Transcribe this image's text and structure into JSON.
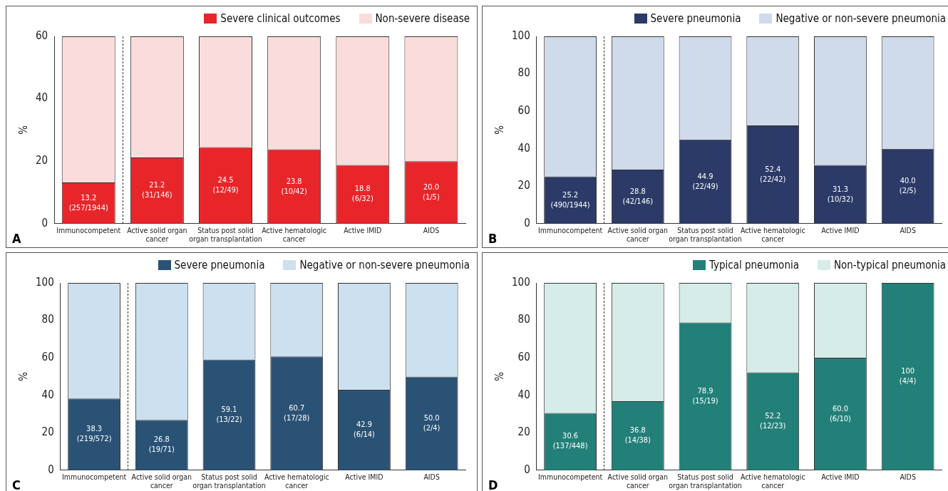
{
  "chart_data": [
    {
      "type": "bar",
      "stacked": true,
      "categories": [
        "Immunocompetent",
        "Active solid organ cancer",
        "Status post solid organ transplantation",
        "Active hematologic cancer",
        "Active IMID",
        "AIDS"
      ],
      "series": [
        {
          "name": "Severe clinical outcomes",
          "color": "#e8262a",
          "values": [
            13.2,
            21.2,
            24.5,
            23.8,
            18.8,
            20.0
          ],
          "value_labels": [
            "13.2 (257/1944)",
            "21.2 (31/146)",
            "24.5 (12/49)",
            "23.8 (10/42)",
            "18.8 (6/32)",
            "20.0 (1/5)"
          ]
        },
        {
          "name": "Non-severe disease",
          "color": "#fbdcdc",
          "values": [
            46.8,
            38.8,
            35.5,
            36.2,
            41.2,
            40.0
          ]
        }
      ],
      "ylabel": "%",
      "ylim": [
        0,
        60
      ],
      "yticks": [
        0,
        20,
        40,
        60
      ],
      "legend": "top right",
      "grid": false,
      "annotations": [
        "A"
      ]
    },
    {
      "type": "bar",
      "stacked": true,
      "categories": [
        "Immunocompetent",
        "Active solid organ cancer",
        "Status post solid organ transplantation",
        "Active hematologic cancer",
        "Active IMID",
        "AIDS"
      ],
      "series": [
        {
          "name": "Severe pneumonia",
          "color": "#2b3a67",
          "values": [
            25.2,
            28.8,
            44.9,
            52.4,
            31.3,
            40.0
          ],
          "value_labels": [
            "25.2 (490/1944)",
            "28.8 (42/146)",
            "44.9 (22/49)",
            "52.4 (22/42)",
            "31.3 (10/32)",
            "40.0 (2/5)"
          ]
        },
        {
          "name": "Negative or non-severe pneumonia",
          "color": "#cfdaeb",
          "values": [
            74.8,
            71.2,
            55.1,
            47.6,
            68.7,
            60.0
          ]
        }
      ],
      "ylabel": "%",
      "ylim": [
        0,
        100
      ],
      "yticks": [
        0,
        20,
        40,
        60,
        80,
        100
      ],
      "legend": "top right",
      "grid": false,
      "annotations": [
        "B"
      ]
    },
    {
      "type": "bar",
      "stacked": true,
      "categories": [
        "Immunocompetent",
        "Active solid organ cancer",
        "Status post solid organ transplantation",
        "Active hematologic cancer",
        "Active IMID",
        "AIDS"
      ],
      "series": [
        {
          "name": "Severe pneumonia",
          "color": "#2a5275",
          "values": [
            38.3,
            26.8,
            59.1,
            60.7,
            42.9,
            50.0
          ],
          "value_labels": [
            "38.3 (219/572)",
            "26.8 (19/71)",
            "59.1 (13/22)",
            "60.7 (17/28)",
            "42.9 (6/14)",
            "50.0 (2/4)"
          ]
        },
        {
          "name": "Negative or non-severe pneumonia",
          "color": "#cde0ef",
          "values": [
            61.7,
            73.2,
            40.9,
            39.3,
            57.1,
            50.0
          ]
        }
      ],
      "ylabel": "%",
      "ylim": [
        0,
        100
      ],
      "yticks": [
        0,
        20,
        40,
        60,
        80,
        100
      ],
      "legend": "top right",
      "grid": false,
      "annotations": [
        "C"
      ]
    },
    {
      "type": "bar",
      "stacked": true,
      "categories": [
        "Immunocompetent",
        "Active solid organ cancer",
        "Status post solid organ transplantation",
        "Active hematologic cancer",
        "Active IMID",
        "AIDS"
      ],
      "series": [
        {
          "name": "Typical pneumonia",
          "color": "#238079",
          "values": [
            30.6,
            36.8,
            78.9,
            52.2,
            60.0,
            100
          ],
          "value_labels": [
            "30.6 (137/448)",
            "36.8 (14/38)",
            "78.9 (15/19)",
            "52.2 (12/23)",
            "60.0 (6/10)",
            "100 (4/4)"
          ]
        },
        {
          "name": "Non-typical pneumonia",
          "color": "#d5ece8",
          "values": [
            69.4,
            63.2,
            21.1,
            47.8,
            40.0,
            0
          ]
        }
      ],
      "ylabel": "%",
      "ylim": [
        0,
        100
      ],
      "yticks": [
        0,
        20,
        40,
        60,
        80,
        100
      ],
      "legend": "top right",
      "grid": false,
      "annotations": [
        "D"
      ]
    }
  ]
}
